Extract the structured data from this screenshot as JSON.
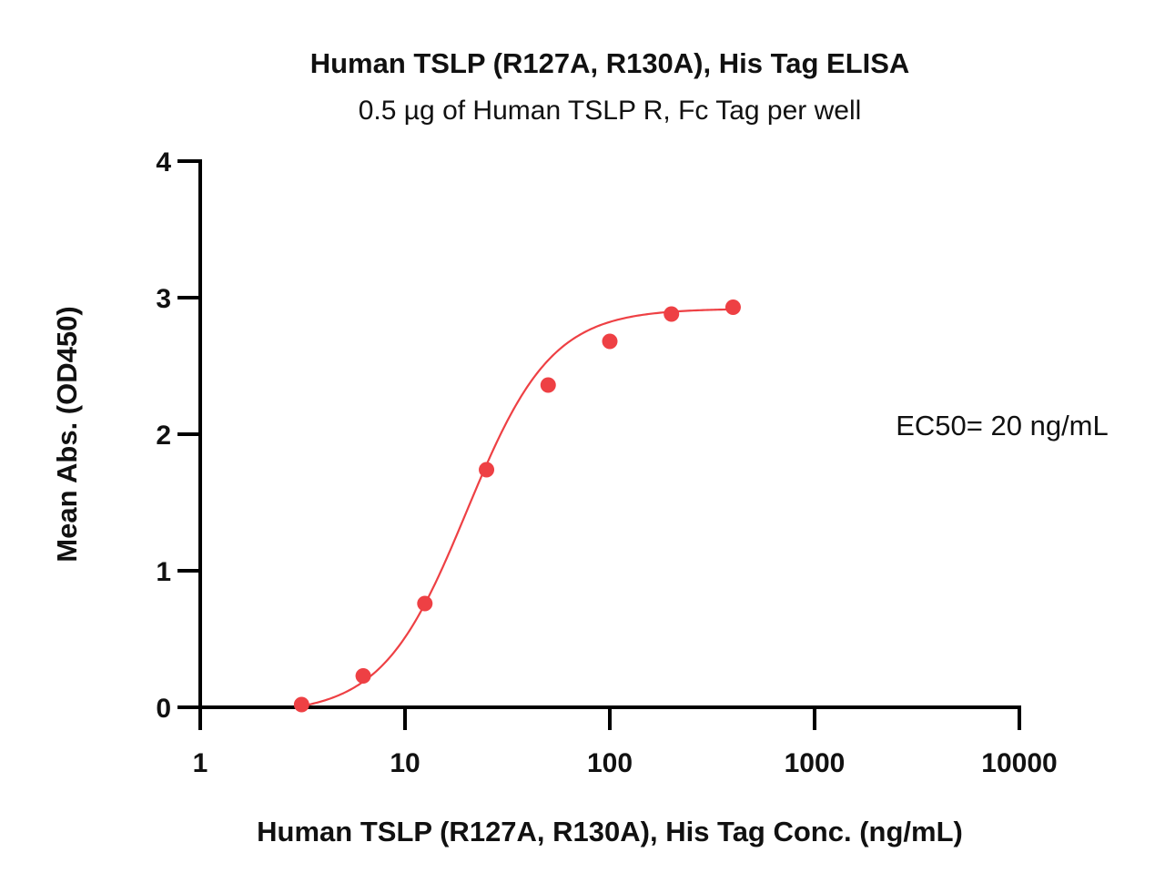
{
  "chart_data": {
    "type": "scatter",
    "title": "Human TSLP (R127A, R130A), His Tag ELISA",
    "subtitle": "0.5 µg of Human TSLP R, Fc Tag per well",
    "xlabel": "Human TSLP (R127A, R130A), His Tag Conc. (ng/mL)",
    "ylabel": "Mean Abs. (OD450)",
    "x_scale": "log",
    "xlim": [
      1,
      10000
    ],
    "ylim": [
      0,
      4
    ],
    "x_ticks": [
      1,
      10,
      100,
      1000,
      10000
    ],
    "x_tick_labels": [
      "1",
      "10",
      "100",
      "1000",
      "10000"
    ],
    "y_ticks": [
      0,
      1,
      2,
      3,
      4
    ],
    "y_tick_labels": [
      "0",
      "1",
      "2",
      "3",
      "4"
    ],
    "grid": false,
    "series": [
      {
        "color": "#ee4044",
        "x": [
          3.125,
          6.25,
          12.5,
          25,
          50,
          100,
          200,
          400
        ],
        "y": [
          0.02,
          0.23,
          0.76,
          1.74,
          2.36,
          2.68,
          2.88,
          2.93
        ]
      }
    ],
    "fit": {
      "model": "4PL",
      "bottom": -0.05,
      "top": 2.92,
      "ec50": 20,
      "hill": 2.1
    },
    "annotations": [
      {
        "text": "EC50= 20 ng/mL"
      }
    ]
  }
}
